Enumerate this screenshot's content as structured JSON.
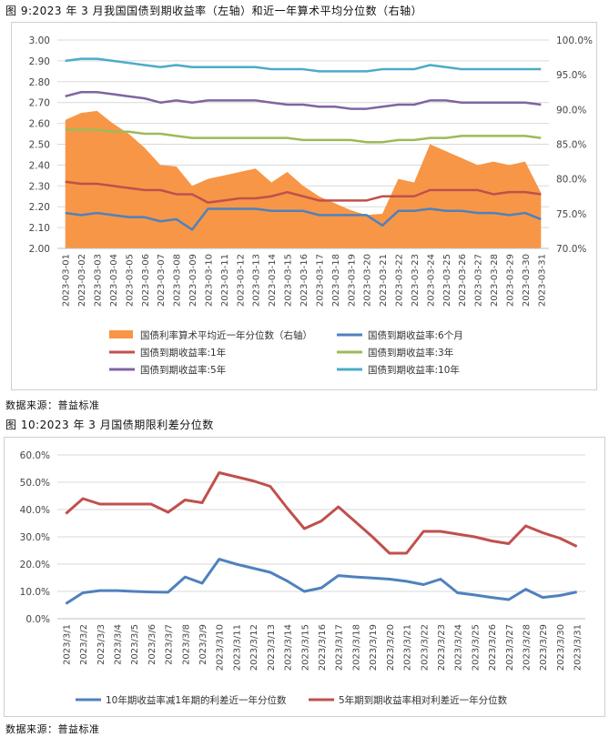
{
  "figure1": {
    "caption": "图 9:2023 年 3 月我国国债到期收益率（左轴）和近一年算术平均分位数（右轴）",
    "source": "数据来源：普益标准",
    "chart_data": {
      "type": "line",
      "categories": [
        "2023-03-01",
        "2023-03-02",
        "2023-03-03",
        "2023-03-04",
        "2023-03-05",
        "2023-03-06",
        "2023-03-07",
        "2023-03-08",
        "2023-03-09",
        "2023-03-10",
        "2023-03-11",
        "2023-03-12",
        "2023-03-13",
        "2023-03-14",
        "2023-03-15",
        "2023-03-16",
        "2023-03-17",
        "2023-03-18",
        "2023-03-19",
        "2023-03-20",
        "2023-03-21",
        "2023-03-22",
        "2023-03-23",
        "2023-03-24",
        "2023-03-25",
        "2023-03-26",
        "2023-03-27",
        "2023-03-28",
        "2023-03-29",
        "2023-03-30",
        "2023-03-31"
      ],
      "y_left": {
        "ylim": [
          2.0,
          3.0
        ],
        "ticks": [
          "2.00",
          "2.10",
          "2.20",
          "2.30",
          "2.40",
          "2.50",
          "2.60",
          "2.70",
          "2.80",
          "2.90",
          "3.00"
        ]
      },
      "y_right": {
        "ylim": [
          70,
          100
        ],
        "ticks": [
          "70.0%",
          "75.0%",
          "80.0%",
          "85.0%",
          "90.0%",
          "95.0%",
          "100.0%"
        ]
      },
      "area": {
        "name": "国债利率算术平均近一年分位数（右轴）",
        "color": "#F79646",
        "axis": "right",
        "values": [
          88.5,
          89.5,
          89.8,
          88.0,
          86.5,
          84.5,
          82.0,
          81.8,
          79.0,
          80.0,
          80.5,
          81.0,
          81.5,
          79.5,
          81.0,
          79.0,
          77.5,
          76.5,
          75.5,
          74.8,
          75.0,
          80.0,
          79.5,
          85.0,
          84.0,
          83.0,
          82.0,
          82.5,
          82.0,
          82.5,
          78.0
        ]
      },
      "series": [
        {
          "name": "国债到期收益率:6个月",
          "color": "#4F81BD",
          "values": [
            2.17,
            2.16,
            2.17,
            2.16,
            2.15,
            2.15,
            2.13,
            2.14,
            2.09,
            2.19,
            2.19,
            2.19,
            2.19,
            2.18,
            2.18,
            2.18,
            2.16,
            2.16,
            2.16,
            2.16,
            2.11,
            2.18,
            2.18,
            2.19,
            2.18,
            2.18,
            2.17,
            2.17,
            2.16,
            2.17,
            2.14
          ]
        },
        {
          "name": "国债到期收益率:1年",
          "color": "#C0504D",
          "values": [
            2.32,
            2.31,
            2.31,
            2.3,
            2.29,
            2.28,
            2.28,
            2.26,
            2.26,
            2.22,
            2.23,
            2.24,
            2.24,
            2.25,
            2.27,
            2.25,
            2.23,
            2.23,
            2.23,
            2.23,
            2.25,
            2.25,
            2.25,
            2.28,
            2.28,
            2.28,
            2.28,
            2.26,
            2.27,
            2.27,
            2.26
          ]
        },
        {
          "name": "国债到期收益率:3年",
          "color": "#9BBB59",
          "values": [
            2.57,
            2.57,
            2.57,
            2.56,
            2.56,
            2.55,
            2.55,
            2.54,
            2.53,
            2.53,
            2.53,
            2.53,
            2.53,
            2.53,
            2.53,
            2.52,
            2.52,
            2.52,
            2.52,
            2.51,
            2.51,
            2.52,
            2.52,
            2.53,
            2.53,
            2.54,
            2.54,
            2.54,
            2.54,
            2.54,
            2.53
          ]
        },
        {
          "name": "国债到期收益率:5年",
          "color": "#8064A2",
          "values": [
            2.73,
            2.75,
            2.75,
            2.74,
            2.73,
            2.72,
            2.7,
            2.71,
            2.7,
            2.71,
            2.71,
            2.71,
            2.71,
            2.7,
            2.69,
            2.69,
            2.68,
            2.68,
            2.67,
            2.67,
            2.68,
            2.69,
            2.69,
            2.71,
            2.71,
            2.7,
            2.7,
            2.7,
            2.7,
            2.7,
            2.69
          ]
        },
        {
          "name": "国债到期收益率:10年",
          "color": "#4BACC6",
          "values": [
            2.9,
            2.91,
            2.91,
            2.9,
            2.89,
            2.88,
            2.87,
            2.88,
            2.87,
            2.87,
            2.87,
            2.87,
            2.87,
            2.86,
            2.86,
            2.86,
            2.85,
            2.85,
            2.85,
            2.85,
            2.86,
            2.86,
            2.86,
            2.88,
            2.87,
            2.86,
            2.86,
            2.86,
            2.86,
            2.86,
            2.86
          ]
        }
      ]
    }
  },
  "figure2": {
    "caption": "图 10:2023 年 3 月国债期限利差分位数",
    "source": "数据来源：普益标准",
    "chart_data": {
      "type": "line",
      "categories": [
        "2023/3/1",
        "2023/3/2",
        "2023/3/3",
        "2023/3/4",
        "2023/3/5",
        "2023/3/6",
        "2023/3/7",
        "2023/3/8",
        "2023/3/9",
        "2023/3/10",
        "2023/3/11",
        "2023/3/12",
        "2023/3/13",
        "2023/3/14",
        "2023/3/15",
        "2023/3/16",
        "2023/3/17",
        "2023/3/18",
        "2023/3/19",
        "2023/3/20",
        "2023/3/21",
        "2023/3/22",
        "2023/3/23",
        "2023/3/24",
        "2023/3/25",
        "2023/3/26",
        "2023/3/27",
        "2023/3/28",
        "2023/3/29",
        "2023/3/30",
        "2023/3/31"
      ],
      "ylim": [
        0,
        60
      ],
      "yticks": [
        "0.0%",
        "10.0%",
        "20.0%",
        "30.0%",
        "40.0%",
        "50.0%",
        "60.0%"
      ],
      "series": [
        {
          "name": "10年期收益率减1年期的利差近一年分位数",
          "color": "#4F81BD",
          "values": [
            5.5,
            9.5,
            10.3,
            10.3,
            10.0,
            9.8,
            9.7,
            15.3,
            13.0,
            21.8,
            20.0,
            18.5,
            17.0,
            13.8,
            10.0,
            11.3,
            15.8,
            15.3,
            14.9,
            14.5,
            13.7,
            12.5,
            14.5,
            9.5,
            8.7,
            7.8,
            7.0,
            10.8,
            7.8,
            8.5,
            9.8
          ]
        },
        {
          "name": "5年期到期收益率相对利差近一年分位数",
          "color": "#C0504D",
          "values": [
            38.5,
            44.0,
            42.0,
            42.0,
            42.0,
            42.0,
            39.0,
            43.5,
            42.5,
            53.5,
            52.0,
            50.5,
            48.5,
            40.5,
            33.0,
            35.8,
            41.0,
            35.5,
            30.0,
            24.0,
            24.0,
            32.0,
            32.0,
            31.0,
            30.0,
            28.5,
            27.5,
            34.0,
            31.5,
            29.5,
            26.5
          ]
        }
      ]
    }
  }
}
